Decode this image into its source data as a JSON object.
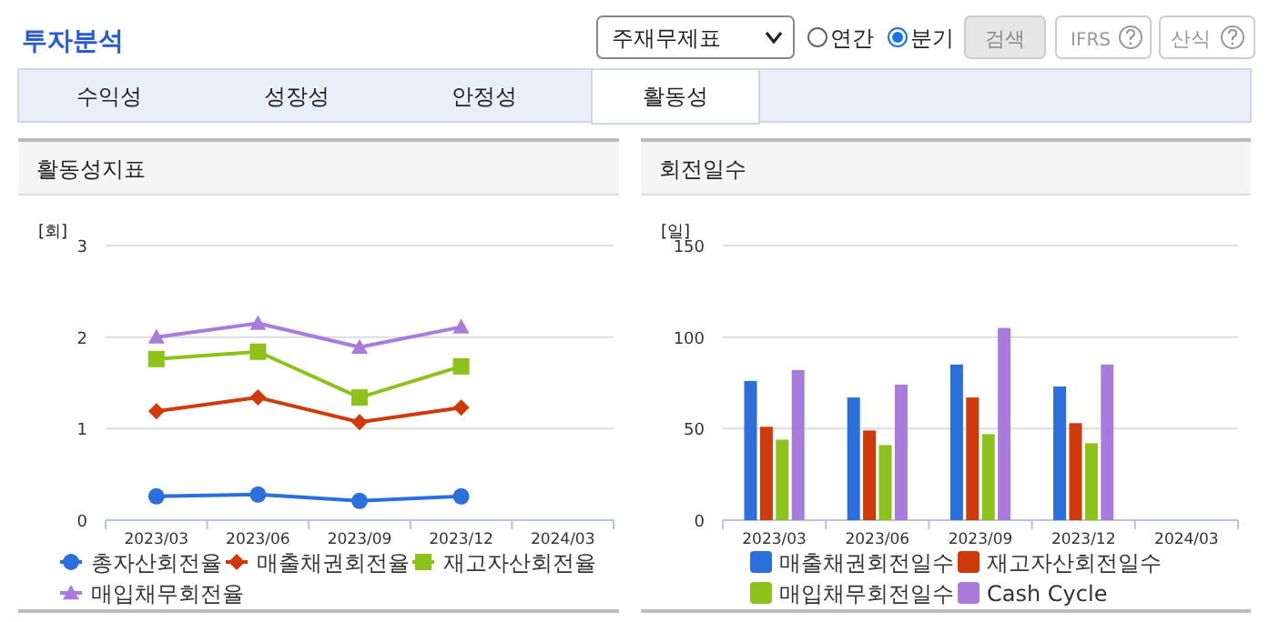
{
  "chart_data": [
    {
      "type": "other",
      "title": "투자분석",
      "annotations": [
        "주재무제표",
        "연간",
        "분기",
        "검색",
        "IFRS",
        "산식",
        "수익성",
        "성장성",
        "안정성",
        "활동성"
      ]
    },
    {
      "type": "line",
      "title": "활동성지표",
      "ylabel": "[회]",
      "categories": [
        "2023/03",
        "2023/06",
        "2023/09",
        "2023/12",
        "2024/03"
      ],
      "ylim": [
        0,
        3
      ],
      "yticks": [
        0,
        1,
        2,
        3
      ],
      "grid": "y",
      "legend": "bottom",
      "series": [
        {
          "name": "총자산회전율",
          "color": "#2a6fdb",
          "marker": "circle",
          "values": [
            0.26,
            0.28,
            0.21,
            0.26,
            null
          ]
        },
        {
          "name": "매출채권회전율",
          "color": "#d03a0a",
          "marker": "diamond",
          "values": [
            1.19,
            1.34,
            1.07,
            1.23,
            null
          ]
        },
        {
          "name": "재고자산회전율",
          "color": "#8cc21a",
          "marker": "square",
          "values": [
            1.76,
            1.84,
            1.34,
            1.68,
            null
          ]
        },
        {
          "name": "매입채무회전율",
          "color": "#a87bdc",
          "marker": "triangle",
          "values": [
            2.0,
            2.15,
            1.89,
            2.11,
            null
          ]
        }
      ]
    },
    {
      "type": "bar",
      "title": "회전일수",
      "ylabel": "[일]",
      "categories": [
        "2023/03",
        "2023/06",
        "2023/09",
        "2023/12",
        "2024/03"
      ],
      "ylim": [
        0,
        150
      ],
      "yticks": [
        0,
        50,
        100,
        150
      ],
      "grid": "y",
      "legend": "bottom",
      "series": [
        {
          "name": "매출채권회전일수",
          "color": "#2a6fdb",
          "values": [
            76,
            67,
            85,
            73,
            null
          ]
        },
        {
          "name": "재고자산회전일수",
          "color": "#d03a0a",
          "values": [
            51,
            49,
            67,
            53,
            null
          ]
        },
        {
          "name": "매입채무회전일수",
          "color": "#8cc21a",
          "values": [
            44,
            41,
            47,
            42,
            null
          ]
        },
        {
          "name": "Cash Cycle",
          "color": "#a87bdc",
          "values": [
            82,
            74,
            105,
            85,
            null
          ]
        }
      ]
    }
  ]
}
